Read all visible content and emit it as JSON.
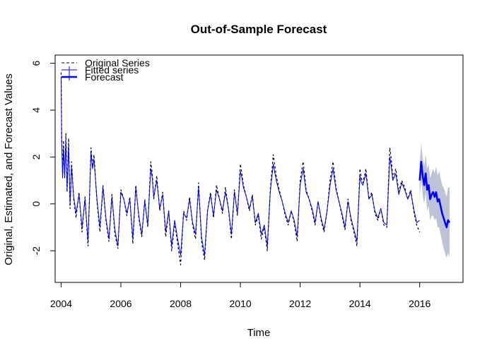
{
  "chart_data": {
    "type": "line",
    "title": "Out-of-Sample Forecast",
    "xlabel": "Time",
    "ylabel": "Original, Estimated, and Forecast Values",
    "xlim": [
      2003.8,
      2017.45
    ],
    "ylim": [
      -3.35,
      6.35
    ],
    "xticks": [
      2004,
      2006,
      2008,
      2010,
      2012,
      2014,
      2016
    ],
    "yticks": [
      -2,
      0,
      2,
      4,
      6
    ],
    "grid": false,
    "legend_position": "top-left",
    "legend": [
      {
        "label": "Original Series",
        "style": "dashed",
        "color": "#000000"
      },
      {
        "label": "Fitted series",
        "style": "solid",
        "color": "#0000ff"
      },
      {
        "label": "Forecast",
        "style": "solid-thick",
        "color": "#0000ff"
      }
    ],
    "series": [
      {
        "name": "Original Series",
        "style": "dashed",
        "color": "#000000",
        "x": [
          2004.0,
          2004.02,
          2004.05,
          2004.08,
          2004.12,
          2004.16,
          2004.2,
          2004.25,
          2004.3,
          2004.35,
          2004.42,
          2004.5,
          2004.6,
          2004.7,
          2004.8,
          2004.9,
          2005.0,
          2005.05,
          2005.1,
          2005.2,
          2005.3,
          2005.4,
          2005.5,
          2005.6,
          2005.7,
          2005.8,
          2005.9,
          2006.0,
          2006.1,
          2006.2,
          2006.3,
          2006.4,
          2006.5,
          2006.6,
          2006.7,
          2006.8,
          2006.9,
          2007.0,
          2007.05,
          2007.1,
          2007.2,
          2007.3,
          2007.4,
          2007.5,
          2007.6,
          2007.7,
          2007.8,
          2007.9,
          2008.0,
          2008.1,
          2008.2,
          2008.3,
          2008.4,
          2008.5,
          2008.6,
          2008.7,
          2008.8,
          2008.9,
          2009.0,
          2009.1,
          2009.2,
          2009.3,
          2009.4,
          2009.5,
          2009.6,
          2009.7,
          2009.8,
          2009.9,
          2010.0,
          2010.05,
          2010.1,
          2010.2,
          2010.3,
          2010.4,
          2010.5,
          2010.6,
          2010.7,
          2010.8,
          2010.9,
          2011.0,
          2011.1,
          2011.2,
          2011.3,
          2011.4,
          2011.5,
          2011.6,
          2011.7,
          2011.8,
          2011.9,
          2012.0,
          2012.1,
          2012.2,
          2012.3,
          2012.4,
          2012.5,
          2012.6,
          2012.7,
          2012.8,
          2012.9,
          2013.0,
          2013.1,
          2013.2,
          2013.3,
          2013.4,
          2013.5,
          2013.6,
          2013.7,
          2013.8,
          2013.9,
          2014.0,
          2014.05,
          2014.1,
          2014.2,
          2014.3,
          2014.4,
          2014.5,
          2014.6,
          2014.7,
          2014.8,
          2014.9,
          2015.0,
          2015.05,
          2015.1,
          2015.2,
          2015.3,
          2015.4,
          2015.5,
          2015.6,
          2015.7,
          2015.8,
          2015.9,
          2016.0
        ],
        "values": [
          5.6,
          2.9,
          1.2,
          2.7,
          1.1,
          3.0,
          0.5,
          2.8,
          -0.2,
          1.8,
          0.2,
          -0.6,
          0.5,
          -1.2,
          0.3,
          -1.8,
          2.4,
          1.6,
          2.1,
          0.1,
          -1.2,
          0.8,
          -0.7,
          -1.6,
          0.4,
          -1.3,
          -1.9,
          0.6,
          0.2,
          -0.5,
          0.3,
          -1.7,
          0.8,
          -0.6,
          -1.4,
          0.2,
          -1.0,
          1.8,
          1.3,
          0.2,
          1.2,
          -0.3,
          0.5,
          -1.4,
          -0.3,
          -2.0,
          -0.8,
          -1.7,
          -2.6,
          -0.3,
          -0.7,
          0.3,
          -0.9,
          -1.5,
          0.9,
          -1.6,
          -2.4,
          -0.3,
          0.5,
          -0.6,
          0.8,
          0.2,
          -0.4,
          0.7,
          -0.2,
          -1.5,
          0.6,
          -0.5,
          1.7,
          1.3,
          0.8,
          0.3,
          -0.3,
          0.4,
          -0.9,
          -0.5,
          -1.5,
          -1.0,
          -2.0,
          0.6,
          2.1,
          1.2,
          0.6,
          0.1,
          -0.5,
          -0.9,
          -0.3,
          -0.8,
          -1.6,
          1.0,
          1.8,
          0.6,
          0.2,
          -0.3,
          -0.9,
          0.1,
          -0.7,
          -1.2,
          -0.3,
          1.0,
          1.8,
          0.7,
          0.1,
          -0.5,
          -1.1,
          0.2,
          -0.7,
          -1.2,
          -1.8,
          1.5,
          1.1,
          0.9,
          1.5,
          0.2,
          0.5,
          -0.4,
          -0.7,
          -0.2,
          -0.9,
          -1.0,
          2.4,
          1.9,
          1.1,
          1.5,
          0.5,
          1.0,
          0.7,
          0.2,
          0.6,
          -0.3,
          -0.9,
          -1.2
        ]
      },
      {
        "name": "Fitted series",
        "style": "solid",
        "color": "#0000ff",
        "x": [
          2004.0,
          2004.02,
          2004.05,
          2004.08,
          2004.12,
          2004.16,
          2004.2,
          2004.25,
          2004.3,
          2004.35,
          2004.42,
          2004.5,
          2004.6,
          2004.7,
          2004.8,
          2004.9,
          2005.0,
          2005.05,
          2005.1,
          2005.2,
          2005.3,
          2005.4,
          2005.5,
          2005.6,
          2005.7,
          2005.8,
          2005.9,
          2006.0,
          2006.1,
          2006.2,
          2006.3,
          2006.4,
          2006.5,
          2006.6,
          2006.7,
          2006.8,
          2006.9,
          2007.0,
          2007.05,
          2007.1,
          2007.2,
          2007.3,
          2007.4,
          2007.5,
          2007.6,
          2007.7,
          2007.8,
          2007.9,
          2008.0,
          2008.1,
          2008.2,
          2008.3,
          2008.4,
          2008.5,
          2008.6,
          2008.7,
          2008.8,
          2008.9,
          2009.0,
          2009.1,
          2009.2,
          2009.3,
          2009.4,
          2009.5,
          2009.6,
          2009.7,
          2009.8,
          2009.9,
          2010.0,
          2010.05,
          2010.1,
          2010.2,
          2010.3,
          2010.4,
          2010.5,
          2010.6,
          2010.7,
          2010.8,
          2010.9,
          2011.0,
          2011.1,
          2011.2,
          2011.3,
          2011.4,
          2011.5,
          2011.6,
          2011.7,
          2011.8,
          2011.9,
          2012.0,
          2012.1,
          2012.2,
          2012.3,
          2012.4,
          2012.5,
          2012.6,
          2012.7,
          2012.8,
          2012.9,
          2013.0,
          2013.1,
          2013.2,
          2013.3,
          2013.4,
          2013.5,
          2013.6,
          2013.7,
          2013.8,
          2013.9,
          2014.0,
          2014.05,
          2014.1,
          2014.2,
          2014.3,
          2014.4,
          2014.5,
          2014.6,
          2014.7,
          2014.8,
          2014.9,
          2015.0,
          2015.05,
          2015.1,
          2015.2,
          2015.3,
          2015.4,
          2015.5,
          2015.6,
          2015.7,
          2015.8,
          2015.9,
          2016.0
        ],
        "values": [
          5.4,
          2.6,
          1.1,
          2.4,
          1.2,
          2.7,
          0.6,
          2.5,
          0.0,
          1.6,
          0.3,
          -0.4,
          0.4,
          -1.0,
          0.2,
          -1.6,
          2.2,
          1.5,
          1.9,
          0.2,
          -1.0,
          0.7,
          -0.6,
          -1.5,
          0.3,
          -1.1,
          -1.8,
          0.5,
          0.2,
          -0.4,
          0.2,
          -1.5,
          0.7,
          -0.5,
          -1.3,
          0.1,
          -0.9,
          1.5,
          1.1,
          0.3,
          1.0,
          -0.2,
          0.4,
          -1.2,
          -0.3,
          -1.8,
          -0.7,
          -1.5,
          -2.2,
          -0.4,
          -0.6,
          0.2,
          -0.8,
          -1.3,
          0.7,
          -1.4,
          -2.2,
          -0.3,
          0.4,
          -0.5,
          0.6,
          0.2,
          -0.3,
          0.5,
          -0.2,
          -1.3,
          0.5,
          -0.4,
          1.4,
          1.1,
          0.7,
          0.3,
          -0.2,
          0.3,
          -0.8,
          -0.4,
          -1.3,
          -0.9,
          -1.8,
          0.5,
          1.7,
          1.0,
          0.5,
          0.1,
          -0.4,
          -0.8,
          -0.3,
          -0.7,
          -1.4,
          0.8,
          1.5,
          0.5,
          0.2,
          -0.2,
          -0.8,
          0.1,
          -0.6,
          -1.1,
          -0.3,
          0.8,
          1.5,
          0.6,
          0.1,
          -0.4,
          -1.0,
          0.1,
          -0.6,
          -1.1,
          -1.6,
          1.2,
          0.9,
          0.8,
          1.3,
          0.2,
          0.4,
          -0.3,
          -0.6,
          -0.2,
          -0.8,
          -0.9,
          2.0,
          1.6,
          1.0,
          1.3,
          0.4,
          0.9,
          0.6,
          0.2,
          0.5,
          -0.2,
          -0.8,
          -0.7
        ]
      },
      {
        "name": "Forecast",
        "style": "solid-thick",
        "color": "#0000ff",
        "x": [
          2016.0,
          2016.05,
          2016.1,
          2016.15,
          2016.2,
          2016.25,
          2016.3,
          2016.35,
          2016.4,
          2016.45,
          2016.5,
          2016.55,
          2016.6,
          2016.65,
          2016.7,
          2016.75,
          2016.8,
          2016.85,
          2016.9,
          2016.95,
          2017.0
        ],
        "values": [
          1.0,
          1.8,
          1.2,
          0.8,
          1.3,
          0.6,
          0.8,
          0.2,
          0.4,
          0.5,
          0.3,
          0.5,
          0.1,
          0.2,
          -0.1,
          -0.4,
          -0.6,
          -0.8,
          -1.0,
          -0.7,
          -0.8
        ],
        "band_low": [
          0.3,
          1.0,
          0.4,
          0.0,
          0.5,
          -0.3,
          -0.1,
          -0.7,
          -0.5,
          -0.5,
          -0.7,
          -0.6,
          -1.0,
          -1.0,
          -1.3,
          -1.6,
          -1.9,
          -2.1,
          -2.3,
          -2.1,
          -2.3
        ],
        "band_high": [
          1.7,
          2.6,
          2.0,
          1.6,
          2.1,
          1.5,
          1.7,
          1.1,
          1.3,
          1.5,
          1.3,
          1.6,
          1.2,
          1.4,
          1.1,
          0.8,
          0.7,
          0.5,
          0.3,
          0.7,
          0.7
        ]
      }
    ],
    "band_color": "#a8aec8"
  }
}
